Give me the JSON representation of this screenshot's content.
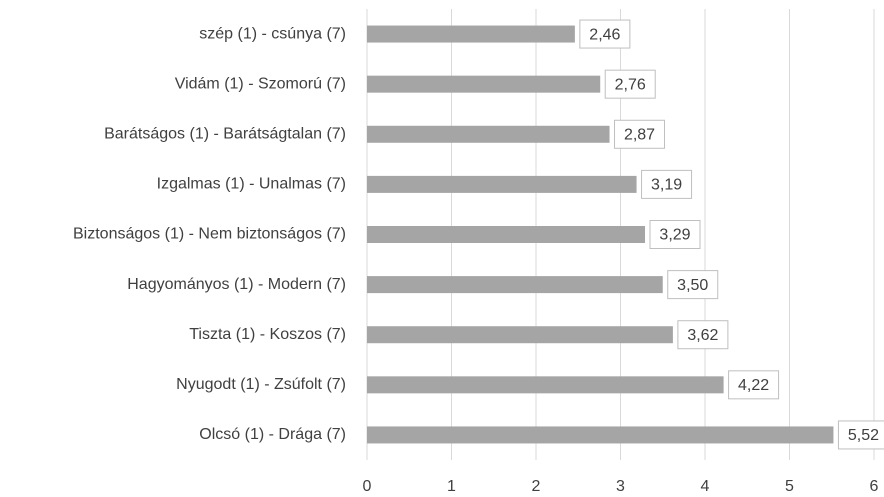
{
  "chart_data": {
    "type": "bar",
    "orientation": "horizontal",
    "categories": [
      "szép (1) - csúnya (7)",
      "Vidám (1) - Szomorú (7)",
      "Barátságos (1) - Barátságtalan (7)",
      "Izgalmas (1) - Unalmas (7)",
      "Biztonságos (1)  - Nem biztonságos (7)",
      "Hagyományos (1) - Modern (7)",
      "Tiszta (1) - Koszos (7)",
      "Nyugodt (1) - Zsúfolt (7)",
      "Olcsó (1) - Drága (7)"
    ],
    "values": [
      2.46,
      2.76,
      2.87,
      3.19,
      3.29,
      3.5,
      3.62,
      4.22,
      5.52
    ],
    "value_labels": [
      "2,46",
      "2,76",
      "2,87",
      "3,19",
      "3,29",
      "3,50",
      "3,62",
      "4,22",
      "5,52"
    ],
    "color": "#a5a5a5",
    "xlim": [
      0,
      6
    ],
    "xticks": [
      0,
      1,
      2,
      3,
      4,
      5,
      6
    ],
    "grid": true
  }
}
